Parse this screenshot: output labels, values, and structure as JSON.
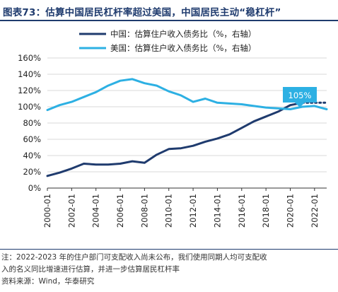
{
  "title": "图表73：估算中国居民杠杆率超过美国，中国居民主动“稳杠杆”",
  "chart_data": {
    "type": "line",
    "years": [
      2000,
      2001,
      2002,
      2003,
      2004,
      2005,
      2006,
      2007,
      2008,
      2009,
      2010,
      2011,
      2012,
      2013,
      2014,
      2015,
      2016,
      2017,
      2018,
      2019,
      2020,
      2021,
      2022,
      2023
    ],
    "x_tick_labels": [
      "2000-01",
      "2002-01",
      "2004-01",
      "2006-01",
      "2008-01",
      "2010-01",
      "2012-01",
      "2014-01",
      "2016-01",
      "2018-01",
      "2020-01",
      "2022-01"
    ],
    "ylim": [
      0,
      160
    ],
    "y_tick_labels": [
      "0%",
      "20%",
      "40%",
      "60%",
      "80%",
      "100%",
      "120%",
      "140%",
      "160%"
    ],
    "series": [
      {
        "name": "中国：估算住户收入债务比（%，右轴）",
        "color": "#1f3b6e",
        "values": [
          15,
          19,
          24,
          30,
          29,
          29,
          30,
          33,
          31,
          41,
          48,
          49,
          52,
          57,
          61,
          66,
          74,
          82,
          88,
          94,
          102,
          105,
          105,
          105
        ],
        "estimated_from_index": 21
      },
      {
        "name": "美国：估算住户收入债务比（%，右轴）",
        "color": "#2db0e3",
        "values": [
          96,
          102,
          106,
          112,
          118,
          126,
          132,
          134,
          129,
          126,
          119,
          114,
          106,
          110,
          105,
          104,
          103,
          101,
          99,
          98,
          97,
          100,
          101,
          97
        ]
      }
    ],
    "annotation": {
      "label": "105%",
      "color": "#2db0e3"
    },
    "legend_position": "top-center"
  },
  "notes": {
    "line1": "注：2022-2023 年的住户部门可支配收入尚未公布，我们使用同期人均可支配收",
    "line2": "入的名义同比增速进行估算，并进一步估算居民杠杆率",
    "source": "资料来源：Wind，华泰研究"
  }
}
